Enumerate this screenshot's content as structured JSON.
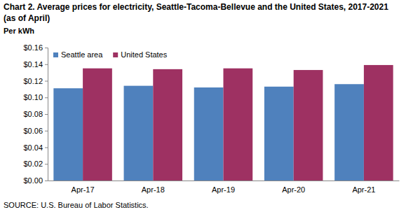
{
  "chart_data": {
    "type": "bar",
    "title": "Chart 2. Average prices for electricity, Seattle-Tacoma-Bellevue and the United States, 2017-2021  (as of April)",
    "y_label": "Per kWh",
    "source": "SOURCE: U.S. Bureau of Labor Statistics.",
    "categories": [
      "Apr-17",
      "Apr-18",
      "Apr-19",
      "Apr-20",
      "Apr-21"
    ],
    "series": [
      {
        "name": "Seattle area",
        "color": "#4f81bd",
        "values": [
          0.111,
          0.114,
          0.112,
          0.113,
          0.116
        ]
      },
      {
        "name": "United States",
        "color": "#9e3162",
        "values": [
          0.135,
          0.134,
          0.135,
          0.133,
          0.139
        ]
      }
    ],
    "ylim": [
      0,
      0.16
    ],
    "yticks": [
      {
        "value": 0,
        "label": "$0.00"
      },
      {
        "value": 0.02,
        "label": "$0.02"
      },
      {
        "value": 0.04,
        "label": "$0.04"
      },
      {
        "value": 0.06,
        "label": "$0.06"
      },
      {
        "value": 0.08,
        "label": "$0.08"
      },
      {
        "value": 0.1,
        "label": "$0.10"
      },
      {
        "value": 0.12,
        "label": "$0.12"
      },
      {
        "value": 0.14,
        "label": "$0.14"
      },
      {
        "value": 0.16,
        "label": "$0.16"
      }
    ],
    "grid": false,
    "legend": "upper left"
  }
}
